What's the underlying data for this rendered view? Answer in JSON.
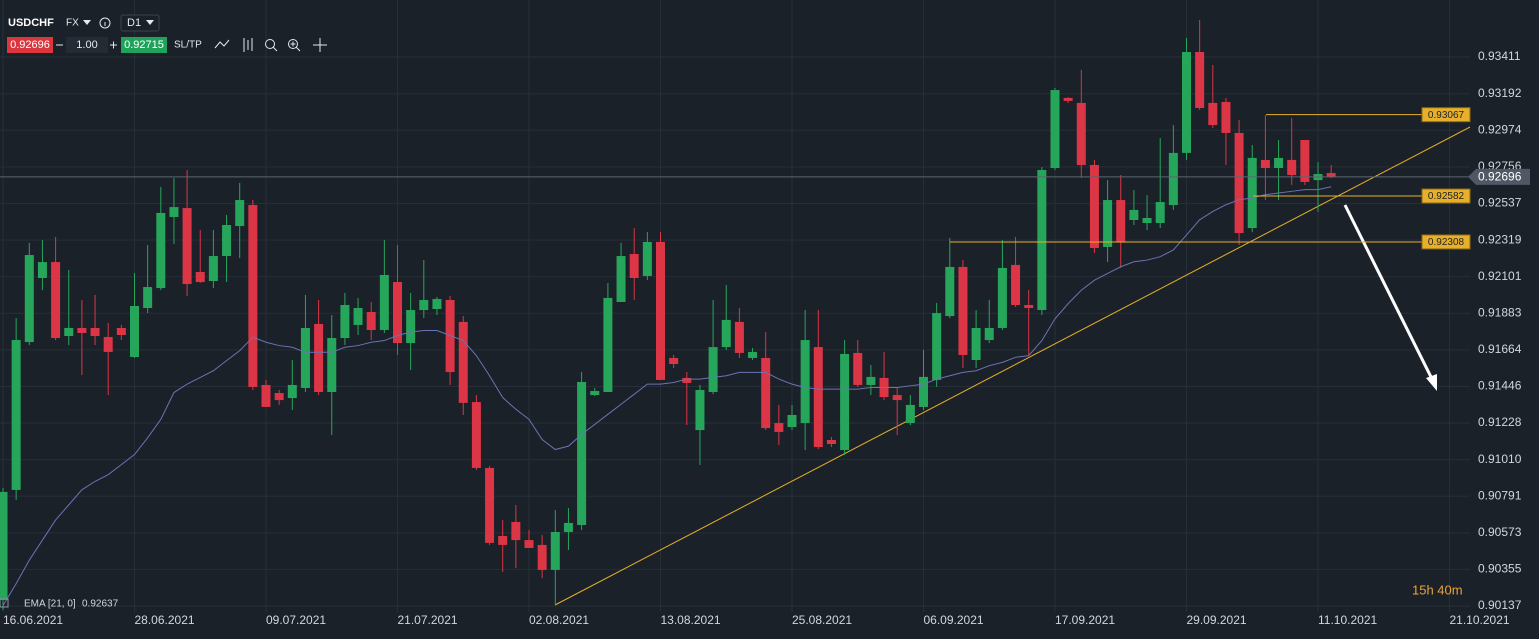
{
  "toolbar": {
    "symbol": "USDCHF",
    "market": "FX",
    "timeframe": "D1",
    "bid": 0.92696,
    "lot": "1.00",
    "ask": 0.92715,
    "sltp": "SL/TP"
  },
  "status": {
    "timer": "15h 40m"
  },
  "chart_data": {
    "type": "candlestick",
    "categories": [
      "16.06.2021",
      null,
      null,
      null,
      null,
      null,
      null,
      null,
      null,
      null,
      "28.06.2021",
      null,
      null,
      null,
      null,
      null,
      null,
      null,
      null,
      null,
      "09.07.2021",
      null,
      null,
      null,
      null,
      null,
      null,
      null,
      null,
      null,
      "21.07.2021",
      null,
      null,
      null,
      null,
      null,
      null,
      null,
      null,
      null,
      "02.08.2021",
      null,
      null,
      null,
      null,
      null,
      null,
      null,
      null,
      null,
      "13.08.2021",
      null,
      null,
      null,
      null,
      null,
      null,
      null,
      null,
      null,
      "25.08.2021",
      null,
      null,
      null,
      null,
      null,
      null,
      null,
      null,
      null,
      "06.09.2021",
      null,
      null,
      null,
      null,
      null,
      null,
      null,
      null,
      null,
      "17.09.2021",
      null,
      null,
      null,
      null,
      null,
      null,
      null,
      null,
      null,
      "29.09.2021",
      null,
      null,
      null,
      null,
      null,
      null,
      null,
      null,
      null,
      "11.10.2021",
      null,
      null,
      null,
      null,
      null,
      null,
      null,
      null,
      null,
      "21.10.2021",
      null
    ],
    "open": [
      0.90173,
      0.90829,
      0.91711,
      0.92093,
      0.92188,
      0.91747,
      0.91795,
      0.91795,
      0.91741,
      0.91795,
      0.91622,
      0.91914,
      0.92033,
      0.92457,
      0.9251,
      0.92129,
      0.92075,
      0.92224,
      0.92403,
      0.92528,
      0.91455,
      0.91407,
      0.91377,
      0.91437,
      0.91819,
      0.91413,
      0.91735,
      0.91813,
      0.9189,
      0.91783,
      0.92069,
      0.91705,
      0.91902,
      0.91908,
      0.91962,
      0.91831,
      0.91353,
      0.9096,
      0.90554,
      0.90638,
      0.9053,
      0.90501,
      0.90352,
      0.90578,
      0.9062,
      0.91395,
      0.91413,
      0.9195,
      0.92236,
      0.92105,
      0.92308,
      0.91616,
      0.91497,
      0.91186,
      0.91413,
      0.91681,
      0.91831,
      0.91616,
      0.91616,
      0.91228,
      0.91204,
      0.91228,
      0.91681,
      0.91127,
      0.91067,
      0.91646,
      0.91455,
      0.91497,
      0.91395,
      0.91228,
      0.91324,
      0.91485,
      0.91866,
      0.92159,
      0.91604,
      0.91723,
      0.91795,
      0.92171,
      0.91932,
      0.91902,
      0.92749,
      0.93167,
      0.93137,
      0.92767,
      0.92278,
      0.92558,
      0.92439,
      0.92421,
      0.92421,
      0.92528,
      0.92839,
      0.93441,
      0.93137,
      0.93143,
      0.92958,
      0.92391,
      0.92797,
      0.92749,
      0.92797,
      0.92916,
      0.92677,
      0.92719,
      null,
      null,
      null,
      null,
      null,
      null,
      null,
      null,
      null,
      null
    ],
    "high": [
      0.90841,
      0.91854,
      0.92302,
      0.9232,
      0.92338,
      0.92141,
      0.91962,
      0.91992,
      0.91825,
      0.91813,
      0.92123,
      0.9229,
      0.92636,
      0.92689,
      0.92737,
      0.92379,
      0.92379,
      0.92469,
      0.9266,
      0.92558,
      0.91485,
      0.91425,
      0.91604,
      0.91992,
      0.91962,
      0.91872,
      0.92004,
      0.91974,
      0.9195,
      0.9232,
      0.9229,
      0.92004,
      0.922,
      0.9198,
      0.91986,
      0.91866,
      0.91395,
      0.90972,
      0.9065,
      0.90739,
      0.9059,
      0.9056,
      0.90709,
      0.90721,
      0.91532,
      0.91437,
      0.92063,
      0.92302,
      0.92391,
      0.92367,
      0.92367,
      0.91634,
      0.91532,
      0.91455,
      0.91962,
      0.92051,
      0.91914,
      0.91676,
      0.91771,
      0.91336,
      0.91336,
      0.91902,
      0.91902,
      0.91145,
      0.91723,
      0.91723,
      0.91574,
      0.91652,
      0.91437,
      0.91395,
      0.91664,
      0.91944,
      0.92332,
      0.922,
      0.91902,
      0.91962,
      0.9232,
      0.92338,
      0.92021,
      0.92755,
      0.93226,
      0.93172,
      0.93334,
      0.92797,
      0.92677,
      0.92707,
      0.92618,
      0.92588,
      0.92928,
      0.93005,
      0.93524,
      0.93632,
      0.93363,
      0.93167,
      0.93035,
      0.92886,
      0.93065,
      0.92916,
      0.93047,
      0.92916,
      0.92785,
      0.92767,
      null,
      null,
      null,
      null,
      null,
      null,
      null,
      null,
      null,
      null
    ],
    "low": [
      0.90113,
      0.90769,
      0.91693,
      0.92021,
      0.91723,
      0.91693,
      0.91514,
      0.91693,
      0.91395,
      0.91723,
      0.91616,
      0.91884,
      0.92021,
      0.92296,
      0.91986,
      0.92063,
      0.92033,
      0.92069,
      0.92212,
      0.91425,
      0.91324,
      0.91336,
      0.91306,
      0.91413,
      0.91395,
      0.91157,
      0.91693,
      0.91753,
      0.91723,
      0.91765,
      0.91634,
      0.91544,
      0.91854,
      0.91872,
      0.91455,
      0.91276,
      0.90948,
      0.90501,
      0.9034,
      0.90363,
      0.90483,
      0.90304,
      0.90143,
      0.90471,
      0.9059,
      0.91389,
      0.91413,
      0.9195,
      0.91962,
      0.92081,
      0.91485,
      0.91556,
      0.91216,
      0.90978,
      0.91401,
      0.91664,
      0.91616,
      0.91604,
      0.91186,
      0.91097,
      0.91186,
      0.91067,
      0.91073,
      0.91085,
      0.91037,
      0.91443,
      0.91395,
      0.91365,
      0.91157,
      0.91216,
      0.91306,
      0.91443,
      0.91854,
      0.91556,
      0.91556,
      0.91705,
      0.91783,
      0.9192,
      0.91634,
      0.91872,
      0.92737,
      0.93137,
      0.92689,
      0.92242,
      0.92188,
      0.92153,
      0.92409,
      0.92379,
      0.92391,
      0.92499,
      0.92797,
      0.93095,
      0.92988,
      0.92767,
      0.9229,
      0.92367,
      0.92558,
      0.92558,
      0.92648,
      0.92648,
      0.92487,
      0.92689,
      null,
      null,
      null,
      null,
      null,
      null,
      null,
      null,
      null,
      null
    ],
    "close": [
      0.90817,
      0.91723,
      0.9223,
      0.92188,
      0.91735,
      0.91795,
      0.91765,
      0.91747,
      0.91652,
      0.91753,
      0.91926,
      0.92039,
      0.92481,
      0.92516,
      0.92057,
      0.92069,
      0.92224,
      0.92409,
      0.92558,
      0.91443,
      0.91324,
      0.91365,
      0.91455,
      0.91795,
      0.91413,
      0.91735,
      0.91932,
      0.91914,
      0.91783,
      0.92111,
      0.91705,
      0.91902,
      0.91962,
      0.91968,
      0.91532,
      0.91348,
      0.9096,
      0.90513,
      0.90501,
      0.9053,
      0.90483,
      0.90352,
      0.90578,
      0.90632,
      0.91473,
      0.91419,
      0.91974,
      0.92224,
      0.92093,
      0.92308,
      0.91485,
      0.9158,
      0.91467,
      0.91425,
      0.91681,
      0.91843,
      0.91646,
      0.91652,
      0.91198,
      0.91175,
      0.91276,
      0.91723,
      0.91085,
      0.91103,
      0.9164,
      0.91455,
      0.91503,
      0.91383,
      0.91365,
      0.91336,
      0.91503,
      0.91884,
      0.92159,
      0.91634,
      0.91795,
      0.91795,
      0.92153,
      0.91932,
      0.91914,
      0.92737,
      0.93214,
      0.93149,
      0.92767,
      0.92272,
      0.92558,
      0.92308,
      0.92499,
      0.92451,
      0.92546,
      0.92839,
      0.93441,
      0.93107,
      0.93005,
      0.92958,
      0.92361,
      0.92809,
      0.92749,
      0.92809,
      0.92707,
      0.92666,
      0.92713,
      0.92696,
      null,
      null,
      null,
      null,
      null,
      null,
      null,
      null,
      null,
      null
    ],
    "up_color": "#26a65b",
    "down_color": "#dc3545",
    "series": [
      {
        "name": "EMA [21, 0]",
        "color": "#6b73b3",
        "values": [
          0.9014,
          0.9027,
          0.9041,
          0.9053,
          0.9065,
          0.9074,
          0.9083,
          0.9088,
          0.9092,
          0.9098,
          0.9104,
          0.9114,
          0.9125,
          0.9141,
          0.9146,
          0.915,
          0.9154,
          0.916,
          0.9166,
          0.9174,
          0.9171,
          0.9169,
          0.9168,
          0.9165,
          0.9165,
          0.9165,
          0.9168,
          0.9169,
          0.9171,
          0.9172,
          0.9175,
          0.9177,
          0.9178,
          0.9178,
          0.9175,
          0.9172,
          0.9163,
          0.9151,
          0.9138,
          0.9131,
          0.9125,
          0.9113,
          0.9107,
          0.9109,
          0.9116,
          0.9122,
          0.9128,
          0.9134,
          0.914,
          0.9146,
          0.9146,
          0.9147,
          0.9149,
          0.9149,
          0.915,
          0.9151,
          0.9153,
          0.9153,
          0.9153,
          0.9149,
          0.9146,
          0.9144,
          0.9143,
          0.9143,
          0.9143,
          0.9143,
          0.9144,
          0.9144,
          0.9144,
          0.9145,
          0.9146,
          0.9149,
          0.9151,
          0.9153,
          0.9154,
          0.9157,
          0.9159,
          0.9162,
          0.9163,
          0.9172,
          0.9185,
          0.9194,
          0.9202,
          0.9208,
          0.9212,
          0.9216,
          0.9219,
          0.922,
          0.9222,
          0.9226,
          0.9235,
          0.9244,
          0.9249,
          0.9253,
          0.9256,
          0.9257,
          0.9259,
          0.926,
          0.9261,
          0.9262,
          0.9262,
          0.92637,
          null,
          null,
          null,
          null,
          null,
          null,
          null,
          null,
          null,
          null
        ]
      }
    ],
    "levels": [
      0.93067,
      0.92582,
      0.92308
    ],
    "level_color": "#e8b02a",
    "ylim": [
      0.90101,
      0.93751
    ],
    "yticks": [
      0.93411,
      0.93192,
      0.92974,
      0.92756,
      0.92537,
      0.92319,
      0.92101,
      0.91883,
      0.91664,
      0.91446,
      0.91228,
      {
        "value": 0.9101,
        "label": "0.91010"
      },
      0.90791,
      0.90573,
      0.90355,
      0.90137
    ],
    "grid": true
  }
}
